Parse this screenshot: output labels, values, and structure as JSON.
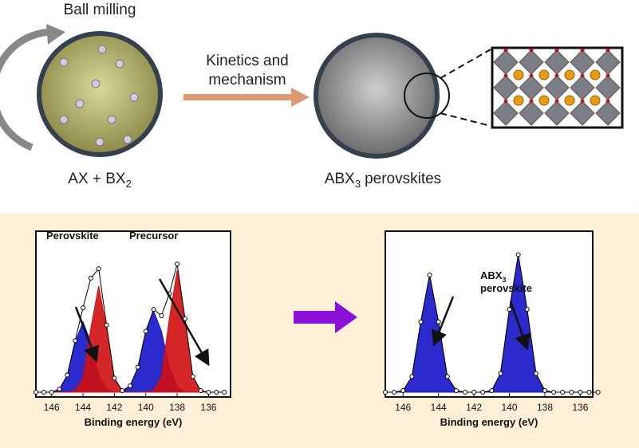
{
  "top": {
    "ball_milling": "Ball milling",
    "arrow_label_line1": "Kinetics and",
    "arrow_label_line2": "mechanism",
    "reactants": {
      "text": "AX + BX",
      "subscript": "2"
    },
    "product": {
      "text": "ABX",
      "subscript": "3",
      "suffix": "perovskites"
    }
  },
  "chart_data": [
    {
      "type": "area",
      "xlabel": "Binding energy (eV)",
      "xlim": [
        147,
        134.6
      ],
      "xticks": [
        146,
        144,
        142,
        140,
        138,
        136
      ],
      "ylim": [
        0,
        1
      ],
      "x": [
        147,
        146.5,
        146,
        145.5,
        145,
        144.5,
        144,
        143.5,
        143,
        142.5,
        142,
        141.5,
        141,
        140.5,
        140,
        139.5,
        139,
        138.5,
        138,
        137.5,
        137,
        136.5,
        136,
        135.5,
        135
      ],
      "series": [
        {
          "color": "#1414c8",
          "values": [
            0,
            0,
            0,
            0.02,
            0.11,
            0.32,
            0.45,
            0.32,
            0.11,
            0.02,
            0,
            0,
            0,
            0,
            0,
            0,
            0,
            0,
            0,
            0,
            0,
            0,
            0,
            0,
            0
          ]
        },
        {
          "color": "#d01010",
          "values": [
            0,
            0,
            0,
            0,
            0,
            0.01,
            0.09,
            0.41,
            0.68,
            0.41,
            0.09,
            0.01,
            0,
            0,
            0,
            0,
            0,
            0,
            0,
            0,
            0,
            0,
            0,
            0,
            0
          ]
        },
        {
          "color": "#1414c8",
          "values": [
            0,
            0,
            0,
            0,
            0,
            0,
            0,
            0,
            0,
            0,
            0,
            0,
            0.04,
            0.16,
            0.39,
            0.52,
            0.39,
            0.16,
            0.04,
            0,
            0,
            0,
            0,
            0,
            0
          ]
        },
        {
          "color": "#d01010",
          "values": [
            0,
            0,
            0,
            0,
            0,
            0,
            0,
            0,
            0,
            0,
            0,
            0,
            0,
            0,
            0,
            0.01,
            0.1,
            0.47,
            0.78,
            0.47,
            0.1,
            0.01,
            0,
            0,
            0
          ]
        },
        {
          "color": "#000000",
          "style": "dots",
          "values": [
            0,
            0,
            0,
            0.02,
            0.11,
            0.33,
            0.54,
            0.73,
            0.79,
            0.43,
            0.09,
            0.01,
            0.04,
            0.16,
            0.39,
            0.53,
            0.49,
            0.63,
            0.82,
            0.47,
            0.1,
            0.01,
            0,
            0,
            0
          ]
        }
      ],
      "annotations": [
        {
          "text": "Perovskite"
        },
        {
          "text": "Precursor"
        }
      ]
    },
    {
      "type": "area",
      "xlabel": "Binding energy (eV)",
      "xlim": [
        147,
        135.3
      ],
      "xticks": [
        146,
        144,
        142,
        140,
        138,
        136
      ],
      "ylim": [
        0,
        1
      ],
      "x": [
        147,
        146.5,
        146,
        145.5,
        145,
        144.5,
        144,
        143.5,
        143,
        142.5,
        142,
        141.5,
        141,
        140.5,
        140,
        139.5,
        139,
        138.5,
        138,
        137.5,
        137,
        136.5,
        136,
        135.5,
        135
      ],
      "series": [
        {
          "color": "#1414c8",
          "values": [
            0,
            0,
            0.01,
            0.1,
            0.45,
            0.75,
            0.45,
            0.1,
            0.01,
            0,
            0,
            0,
            0,
            0,
            0,
            0,
            0,
            0,
            0,
            0,
            0,
            0,
            0,
            0,
            0
          ]
        },
        {
          "color": "#1414c8",
          "values": [
            0,
            0,
            0,
            0,
            0,
            0,
            0,
            0,
            0,
            0,
            0,
            0,
            0.01,
            0.12,
            0.53,
            0.88,
            0.53,
            0.12,
            0.01,
            0,
            0,
            0,
            0,
            0,
            0
          ]
        },
        {
          "color": "#000000",
          "style": "dots",
          "values": [
            0,
            0,
            0.01,
            0.1,
            0.45,
            0.75,
            0.45,
            0.1,
            0.01,
            0,
            0,
            0,
            0.01,
            0.12,
            0.53,
            0.88,
            0.53,
            0.12,
            0.01,
            0,
            0,
            0,
            0,
            0,
            0
          ]
        }
      ],
      "annotations": [
        {
          "text": "ABX",
          "subscript": "3"
        },
        {
          "text": "perovskite"
        }
      ]
    }
  ]
}
